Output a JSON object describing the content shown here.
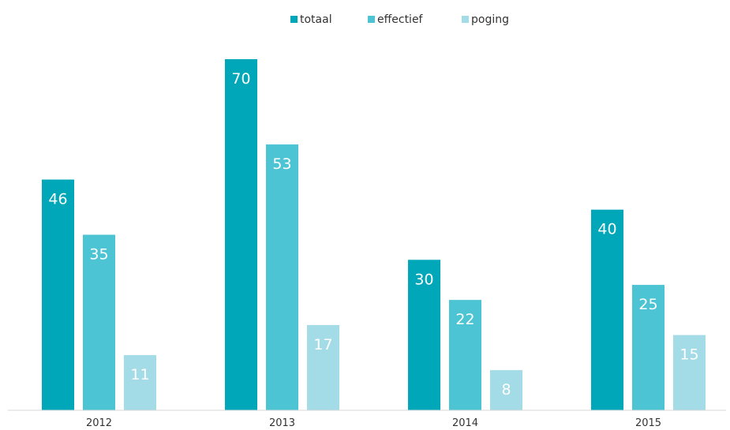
{
  "chart_data": {
    "type": "bar",
    "categories": [
      "2012",
      "2013",
      "2014",
      "2015"
    ],
    "series": [
      {
        "name": "totaal",
        "values": [
          46,
          70,
          30,
          40
        ],
        "color": "#00a7b9"
      },
      {
        "name": "effectief",
        "values": [
          35,
          53,
          22,
          25
        ],
        "color": "#4cc4d4"
      },
      {
        "name": "poging",
        "values": [
          11,
          17,
          8,
          15
        ],
        "color": "#a3dbe6"
      }
    ],
    "ylim": [
      0,
      70
    ],
    "title": "",
    "xlabel": "",
    "ylabel": "",
    "legend_position": "top-center",
    "grid": false,
    "data_labels": true,
    "axis_color": "#d9d9d9"
  }
}
